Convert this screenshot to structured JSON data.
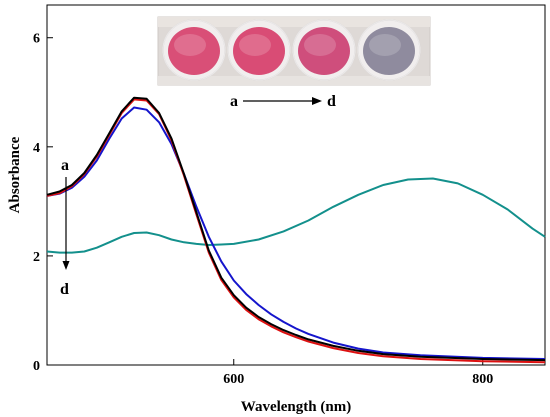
{
  "chart_data": {
    "type": "line",
    "xlabel": "Wavelength (nm)",
    "ylabel": "Absorbance",
    "xlim": [
      450,
      850
    ],
    "ylim": [
      0,
      6.6
    ],
    "x_ticks": [
      600,
      800
    ],
    "y_ticks": [
      0,
      2,
      4,
      6
    ],
    "grid": false,
    "legend": "none",
    "series": [
      {
        "color": "#000000",
        "x": [
          450,
          460,
          470,
          480,
          490,
          500,
          510,
          520,
          530,
          540,
          550,
          560,
          570,
          580,
          590,
          600,
          610,
          620,
          630,
          640,
          650,
          660,
          680,
          700,
          720,
          750,
          800,
          850
        ],
        "y": [
          3.12,
          3.18,
          3.3,
          3.52,
          3.85,
          4.25,
          4.65,
          4.9,
          4.88,
          4.62,
          4.15,
          3.5,
          2.8,
          2.1,
          1.6,
          1.28,
          1.05,
          0.88,
          0.75,
          0.64,
          0.55,
          0.47,
          0.35,
          0.26,
          0.2,
          0.15,
          0.11,
          0.09
        ]
      },
      {
        "color": "#dd1111",
        "x": [
          450,
          460,
          470,
          480,
          490,
          500,
          510,
          520,
          530,
          540,
          550,
          560,
          570,
          580,
          590,
          600,
          610,
          620,
          630,
          640,
          650,
          660,
          680,
          700,
          720,
          750,
          800,
          850
        ],
        "y": [
          3.1,
          3.15,
          3.28,
          3.5,
          3.82,
          4.22,
          4.62,
          4.87,
          4.85,
          4.6,
          4.12,
          3.47,
          2.76,
          2.06,
          1.56,
          1.24,
          1.01,
          0.84,
          0.71,
          0.6,
          0.51,
          0.43,
          0.31,
          0.22,
          0.16,
          0.11,
          0.07,
          0.05
        ]
      },
      {
        "color": "#1515cc",
        "x": [
          450,
          460,
          470,
          480,
          490,
          500,
          510,
          520,
          530,
          540,
          550,
          560,
          570,
          580,
          590,
          600,
          610,
          620,
          630,
          640,
          650,
          660,
          680,
          700,
          720,
          750,
          800,
          850
        ],
        "y": [
          3.1,
          3.14,
          3.25,
          3.45,
          3.75,
          4.15,
          4.52,
          4.72,
          4.68,
          4.45,
          4.05,
          3.5,
          2.9,
          2.35,
          1.9,
          1.55,
          1.3,
          1.1,
          0.93,
          0.79,
          0.67,
          0.57,
          0.41,
          0.3,
          0.23,
          0.18,
          0.13,
          0.11
        ]
      },
      {
        "color": "#13908c",
        "x": [
          450,
          460,
          470,
          480,
          490,
          500,
          510,
          520,
          530,
          540,
          550,
          560,
          570,
          580,
          590,
          600,
          620,
          640,
          660,
          680,
          700,
          720,
          740,
          760,
          780,
          800,
          820,
          840,
          850
        ],
        "y": [
          2.08,
          2.06,
          2.06,
          2.08,
          2.15,
          2.25,
          2.35,
          2.42,
          2.43,
          2.38,
          2.3,
          2.25,
          2.22,
          2.2,
          2.21,
          2.22,
          2.3,
          2.45,
          2.65,
          2.9,
          3.12,
          3.3,
          3.4,
          3.42,
          3.33,
          3.12,
          2.85,
          2.5,
          2.35
        ]
      }
    ],
    "annotations": {
      "top_label_start": "a",
      "top_label_end": "d",
      "side_label_start": "a",
      "side_label_end": "d"
    }
  },
  "inset_photo": {
    "vials": [
      {
        "color": "#d94f77"
      },
      {
        "color": "#d94c75"
      },
      {
        "color": "#cf4e7c"
      },
      {
        "color": "#8f8b9e"
      }
    ]
  }
}
